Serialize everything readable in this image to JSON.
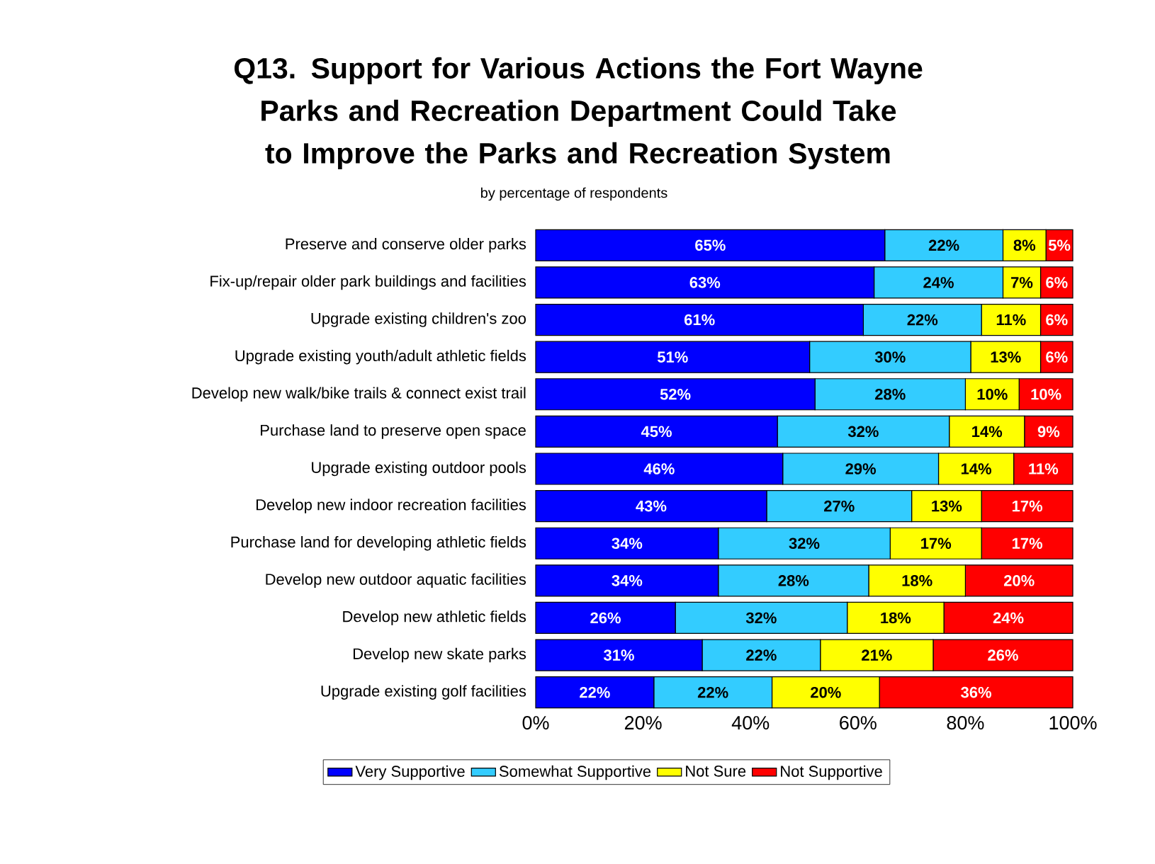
{
  "chart_data": {
    "type": "bar",
    "orientation": "horizontal",
    "stacked": true,
    "title": "Q13.  Support for Various Actions the Fort Wayne Parks and Recreation Department Could Take to Improve the Parks and Recreation System",
    "subtitle": "by percentage of respondents",
    "categories": [
      "Preserve and conserve older parks",
      "Fix-up/repair older park buildings and facilities",
      "Upgrade existing children's zoo",
      "Upgrade existing youth/adult athletic fields",
      "Develop new walk/bike trails & connect exist trail",
      "Purchase land to preserve open space",
      "Upgrade existing outdoor pools",
      "Develop new indoor recreation facilities",
      "Purchase land for developing athletic fields",
      "Develop new outdoor aquatic facilities",
      "Develop new athletic fields",
      "Develop new skate parks",
      "Upgrade existing golf facilities"
    ],
    "series": [
      {
        "name": "Very Supportive",
        "color": "#0000ff",
        "values": [
          65,
          63,
          61,
          51,
          52,
          45,
          46,
          43,
          34,
          34,
          26,
          31,
          22
        ],
        "value_labels": [
          "65%",
          "63%",
          "61%",
          "51%",
          "52%",
          "45%",
          "46%",
          "43%",
          "34%",
          "34%",
          "26%",
          "31%",
          "22%"
        ]
      },
      {
        "name": "Somewhat Supportive",
        "color": "#33ccff",
        "values": [
          22,
          24,
          22,
          30,
          28,
          32,
          29,
          27,
          32,
          28,
          32,
          22,
          22
        ],
        "value_labels": [
          "22%",
          "24%",
          "22%",
          "30%",
          "28%",
          "32%",
          "29%",
          "27%",
          "32%",
          "28%",
          "32%",
          "22%",
          "22%"
        ]
      },
      {
        "name": "Not Sure",
        "color": "#ffff00",
        "values": [
          8,
          7,
          11,
          13,
          10,
          14,
          14,
          13,
          17,
          18,
          18,
          21,
          20
        ],
        "value_labels": [
          "8%",
          "7%",
          "11%",
          "13%",
          "10%",
          "14%",
          "14%",
          "13%",
          "17%",
          "18%",
          "18%",
          "21%",
          "20%"
        ]
      },
      {
        "name": "Not Supportive",
        "color": "#ff0000",
        "values": [
          5,
          6,
          6,
          6,
          10,
          9,
          11,
          17,
          17,
          20,
          24,
          26,
          36
        ],
        "value_labels": [
          "5%",
          "6%",
          "6%",
          "6%",
          "10%",
          "9%",
          "11%",
          "17%",
          "17%",
          "20%",
          "24%",
          "26%",
          "36%"
        ]
      }
    ],
    "xlim": [
      0,
      100
    ],
    "xticks": [
      {
        "value": 0,
        "label": "0%"
      },
      {
        "value": 20,
        "label": "20%"
      },
      {
        "value": 40,
        "label": "40%"
      },
      {
        "value": 60,
        "label": "60%"
      },
      {
        "value": 80,
        "label": "80%"
      },
      {
        "value": 100,
        "label": "100%"
      }
    ],
    "legend": "bottom"
  }
}
